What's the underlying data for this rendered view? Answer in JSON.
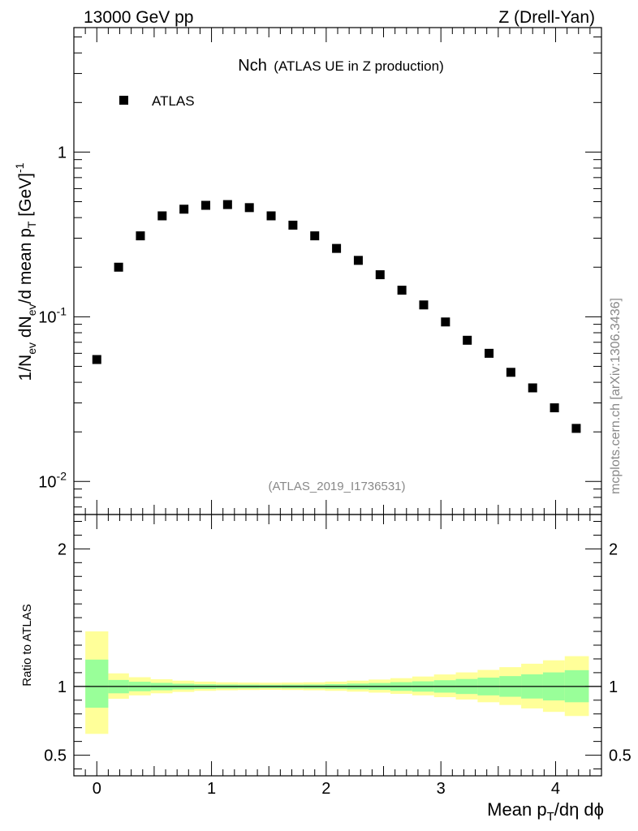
{
  "header": {
    "left": "13000 GeV pp",
    "right": "Z (Drell-Yan)"
  },
  "plot_title": {
    "main": "Nch",
    "sub": "(ATLAS UE in Z production)"
  },
  "analysis_tag": "(ATLAS_2019_I1736531)",
  "side_label": "mcplots.cern.ch [arXiv:1306.3436]",
  "legend": {
    "entry": "ATLAS"
  },
  "colors": {
    "marker": "#000000",
    "band_inner": "#99ff99",
    "band_outer": "#ffff99",
    "axis": "#000000"
  },
  "chart_data": [
    {
      "type": "scatter",
      "panel": "main",
      "ylabel": "1/N_ev dN_ev/d mean p_T [GeV]^-1",
      "y_scale": "log",
      "xlim": [
        -0.2,
        4.4
      ],
      "ylim": [
        0.0063,
        5.7
      ],
      "y_ticks": [
        {
          "value": 1,
          "label": "1"
        },
        {
          "value": 0.1,
          "label": "10^-1"
        },
        {
          "value": 0.01,
          "label": "10^-2"
        }
      ],
      "series": [
        {
          "name": "ATLAS",
          "marker": "square",
          "x": [
            0.0,
            0.19,
            0.38,
            0.57,
            0.76,
            0.95,
            1.14,
            1.33,
            1.52,
            1.71,
            1.9,
            2.09,
            2.28,
            2.47,
            2.66,
            2.85,
            3.04,
            3.23,
            3.42,
            3.61,
            3.8,
            3.99,
            4.18
          ],
          "y": [
            0.055,
            0.2,
            0.31,
            0.41,
            0.45,
            0.475,
            0.48,
            0.46,
            0.41,
            0.36,
            0.31,
            0.26,
            0.22,
            0.18,
            0.145,
            0.118,
            0.093,
            0.072,
            0.06,
            0.046,
            0.037,
            0.028,
            0.021
          ]
        }
      ],
      "legend_position": "top-left"
    },
    {
      "type": "area",
      "panel": "ratio",
      "xlabel": "Mean p_T/dη dϕ",
      "ylabel": "Ratio to ATLAS",
      "xlim": [
        -0.2,
        4.4
      ],
      "ylim": [
        0.35,
        2.25
      ],
      "x_ticks": [
        {
          "value": 0,
          "label": "0"
        },
        {
          "value": 1,
          "label": "1"
        },
        {
          "value": 2,
          "label": "2"
        },
        {
          "value": 3,
          "label": "3"
        },
        {
          "value": 4,
          "label": "4"
        }
      ],
      "y_ticks": [
        {
          "value": 0.5,
          "label": "0.5"
        },
        {
          "value": 1,
          "label": "1"
        },
        {
          "value": 2,
          "label": "2"
        }
      ],
      "bin_edges": [
        -0.1,
        0.1,
        0.28,
        0.47,
        0.66,
        0.85,
        1.04,
        1.23,
        1.42,
        1.61,
        1.8,
        1.99,
        2.18,
        2.37,
        2.56,
        2.75,
        2.94,
        3.13,
        3.32,
        3.51,
        3.7,
        3.89,
        4.08,
        4.29
      ],
      "bands": [
        {
          "name": "outer",
          "lower": [
            0.655,
            0.91,
            0.935,
            0.95,
            0.96,
            0.968,
            0.972,
            0.974,
            0.975,
            0.974,
            0.972,
            0.968,
            0.962,
            0.955,
            0.946,
            0.935,
            0.922,
            0.905,
            0.885,
            0.865,
            0.84,
            0.815,
            0.785
          ],
          "upper": [
            1.4,
            1.095,
            1.067,
            1.052,
            1.042,
            1.035,
            1.03,
            1.028,
            1.027,
            1.028,
            1.03,
            1.035,
            1.042,
            1.05,
            1.06,
            1.072,
            1.087,
            1.102,
            1.12,
            1.14,
            1.165,
            1.19,
            1.22
          ]
        },
        {
          "name": "inner",
          "lower": [
            0.845,
            0.95,
            0.965,
            0.972,
            0.978,
            0.982,
            0.985,
            0.986,
            0.987,
            0.986,
            0.985,
            0.983,
            0.979,
            0.975,
            0.968,
            0.962,
            0.955,
            0.945,
            0.935,
            0.925,
            0.912,
            0.898,
            0.885
          ],
          "upper": [
            1.195,
            1.047,
            1.034,
            1.026,
            1.02,
            1.016,
            1.014,
            1.013,
            1.012,
            1.013,
            1.014,
            1.017,
            1.021,
            1.025,
            1.031,
            1.037,
            1.045,
            1.054,
            1.064,
            1.075,
            1.088,
            1.102,
            1.118
          ]
        }
      ],
      "reference_line": 1
    }
  ]
}
